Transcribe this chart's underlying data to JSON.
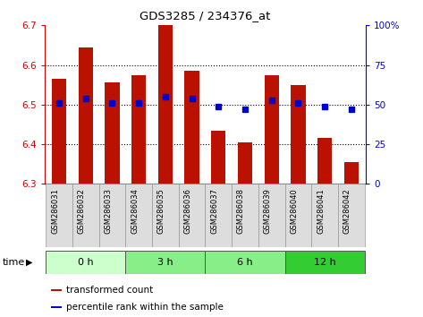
{
  "title": "GDS3285 / 234376_at",
  "samples": [
    "GSM286031",
    "GSM286032",
    "GSM286033",
    "GSM286034",
    "GSM286035",
    "GSM286036",
    "GSM286037",
    "GSM286038",
    "GSM286039",
    "GSM286040",
    "GSM286041",
    "GSM286042"
  ],
  "bar_tops": [
    6.565,
    6.645,
    6.555,
    6.575,
    6.7,
    6.585,
    6.435,
    6.405,
    6.575,
    6.55,
    6.415,
    6.355
  ],
  "bar_bottom": 6.3,
  "percentile_values": [
    6.505,
    6.515,
    6.505,
    6.505,
    6.52,
    6.515,
    6.495,
    6.488,
    6.51,
    6.505,
    6.495,
    6.488
  ],
  "ylim_left": [
    6.3,
    6.7
  ],
  "ylim_right": [
    0,
    100
  ],
  "yticks_left": [
    6.3,
    6.4,
    6.5,
    6.6,
    6.7
  ],
  "yticks_right": [
    0,
    25,
    50,
    75,
    100
  ],
  "ytick_labels_right": [
    "0",
    "25",
    "50",
    "75",
    "100%"
  ],
  "bar_color": "#bb1100",
  "dot_color": "#0000cc",
  "left_tick_color": "#cc0000",
  "right_tick_color": "#0000cc",
  "groups": [
    {
      "label": "0 h",
      "indices": [
        0,
        1,
        2
      ],
      "color": "#ccffcc"
    },
    {
      "label": "3 h",
      "indices": [
        3,
        4,
        5
      ],
      "color": "#88ee88"
    },
    {
      "label": "6 h",
      "indices": [
        6,
        7,
        8
      ],
      "color": "#88ee88"
    },
    {
      "label": "12 h",
      "indices": [
        9,
        10,
        11
      ],
      "color": "#33cc33"
    }
  ],
  "legend_bar_label": "transformed count",
  "legend_dot_label": "percentile rank within the sample"
}
